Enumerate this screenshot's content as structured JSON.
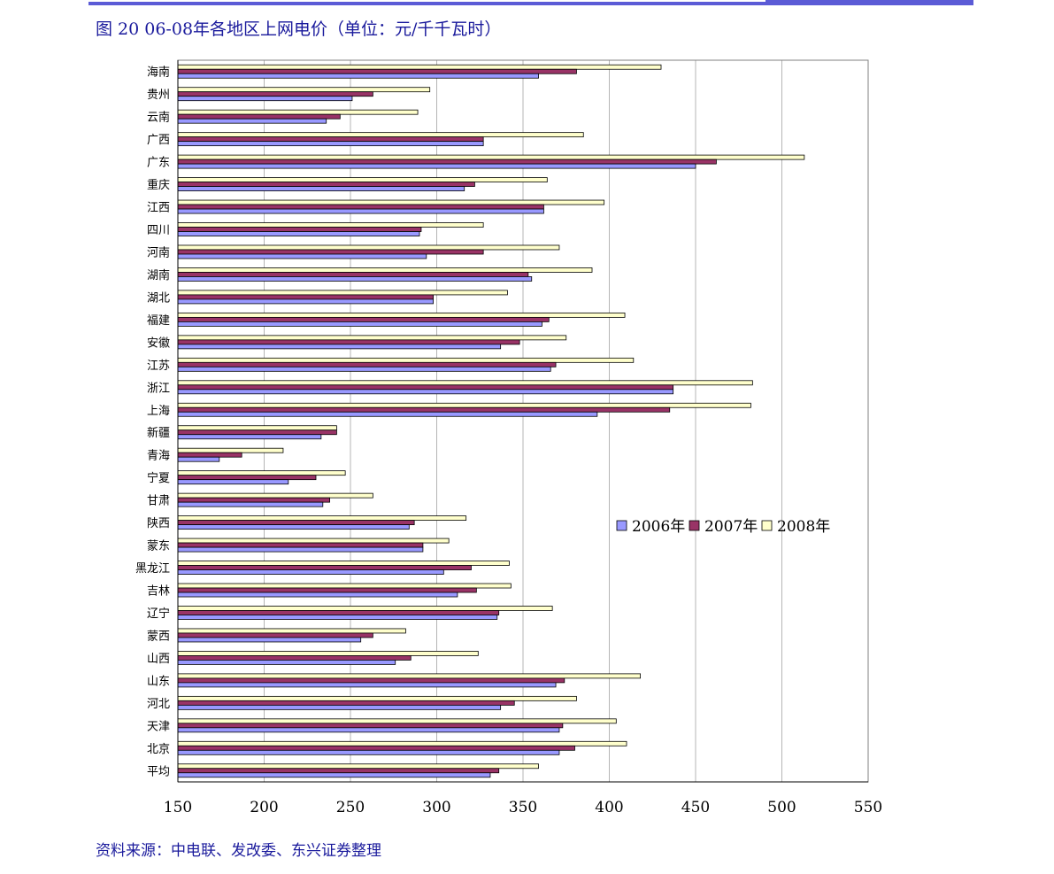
{
  "title": "图 20 06-08年各地区上网电价（单位：元/千千瓦时）",
  "source": "资料来源：中电联、发改委、东兴证券整理",
  "colors": {
    "accent": "#5b5bd6",
    "text_blue": "#1a1a9c"
  },
  "chart_data": {
    "type": "bar",
    "orientation": "horizontal",
    "grid": true,
    "legend_position": "right-middle",
    "xlim": [
      150,
      550
    ],
    "xticks": [
      150,
      200,
      250,
      300,
      350,
      400,
      450,
      500,
      550
    ],
    "categories": [
      "海南",
      "贵州",
      "云南",
      "广西",
      "广东",
      "重庆",
      "江西",
      "四川",
      "河南",
      "湖南",
      "湖北",
      "福建",
      "安徽",
      "江苏",
      "浙江",
      "上海",
      "新疆",
      "青海",
      "宁夏",
      "甘肃",
      "陕西",
      "蒙东",
      "黑龙江",
      "吉林",
      "辽宁",
      "蒙西",
      "山西",
      "山东",
      "河北",
      "天津",
      "北京",
      "平均"
    ],
    "series": [
      {
        "name": "2006年",
        "color": "#9999ff",
        "values": [
          359,
          251,
          236,
          327,
          450,
          316,
          362,
          290,
          294,
          355,
          298,
          361,
          337,
          366,
          437,
          393,
          233,
          174,
          214,
          234,
          284,
          292,
          304,
          312,
          335,
          256,
          276,
          369,
          337,
          371,
          371,
          331
        ]
      },
      {
        "name": "2007年",
        "color": "#993366",
        "values": [
          381,
          263,
          244,
          327,
          462,
          322,
          362,
          291,
          327,
          353,
          298,
          365,
          348,
          369,
          437,
          435,
          242,
          187,
          230,
          238,
          287,
          292,
          320,
          323,
          336,
          263,
          285,
          374,
          345,
          373,
          380,
          336
        ]
      },
      {
        "name": "2008年",
        "color": "#ffffcc",
        "values": [
          430,
          296,
          289,
          385,
          513,
          364,
          397,
          327,
          371,
          390,
          341,
          409,
          375,
          414,
          483,
          482,
          242,
          211,
          247,
          263,
          317,
          307,
          342,
          343,
          367,
          282,
          324,
          418,
          381,
          404,
          410,
          359
        ]
      }
    ]
  }
}
